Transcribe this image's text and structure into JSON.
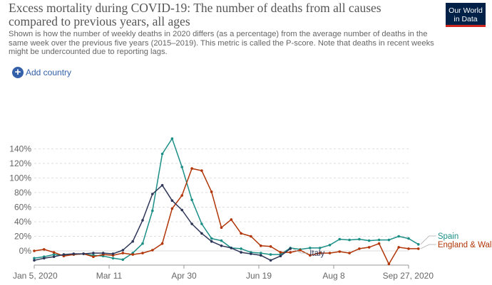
{
  "header": {
    "title": "Excess mortality during COVID-19: The number of deaths from all causes compared to previous years, all ages",
    "subtitle": "Shown is how the number of weekly deaths in 2020 differs (as a percentage) from the average number of deaths in the same week over the previous five years (2015–2019). This metric is called the P-score. Note that deaths in recent weeks might be undercounted due to reporting lags.",
    "logo_line1": "Our World",
    "logo_line2": "in Data"
  },
  "controls": {
    "add_country_label": "Add country",
    "add_icon": "plus-circle-icon"
  },
  "chart_data": {
    "type": "line",
    "title": "Excess mortality during COVID-19: The number of deaths from all causes compared to previous years, all ages",
    "xlabel": "",
    "ylabel": "",
    "x_ticks": [
      "Jan 5, 2020",
      "Mar 11",
      "Apr 30",
      "Jun 19",
      "Aug 8",
      "Sep 27, 2020"
    ],
    "y_ticks": [
      "0%",
      "20%",
      "40%",
      "60%",
      "80%",
      "100%",
      "120%",
      "140%"
    ],
    "ylim": [
      -20,
      150
    ],
    "x_range": [
      "2020-01-05",
      "2020-09-27"
    ],
    "grid": "horizontal dashed",
    "legend": "right (line end labels)",
    "series": [
      {
        "name": "Spain",
        "color": "#1b8f86",
        "points": [
          [
            "2020-01-05",
            -10
          ],
          [
            "2020-01-12",
            -8
          ],
          [
            "2020-01-19",
            -5
          ],
          [
            "2020-01-26",
            -6
          ],
          [
            "2020-02-02",
            -5
          ],
          [
            "2020-02-09",
            -4
          ],
          [
            "2020-02-16",
            -6
          ],
          [
            "2020-02-23",
            -7
          ],
          [
            "2020-03-01",
            -10
          ],
          [
            "2020-03-08",
            -12
          ],
          [
            "2020-03-15",
            -3
          ],
          [
            "2020-03-22",
            10
          ],
          [
            "2020-03-29",
            55
          ],
          [
            "2020-04-05",
            133
          ],
          [
            "2020-04-12",
            154
          ],
          [
            "2020-04-19",
            115
          ],
          [
            "2020-04-26",
            70
          ],
          [
            "2020-05-03",
            37
          ],
          [
            "2020-05-10",
            17
          ],
          [
            "2020-05-17",
            14
          ],
          [
            "2020-05-24",
            4
          ],
          [
            "2020-05-31",
            3
          ],
          [
            "2020-06-07",
            -2
          ],
          [
            "2020-06-14",
            -3
          ],
          [
            "2020-06-21",
            -5
          ],
          [
            "2020-06-28",
            -5
          ],
          [
            "2020-07-05",
            4
          ],
          [
            "2020-07-12",
            2
          ],
          [
            "2020-07-19",
            4
          ],
          [
            "2020-07-26",
            4
          ],
          [
            "2020-08-02",
            8
          ],
          [
            "2020-08-09",
            16
          ],
          [
            "2020-08-16",
            15
          ],
          [
            "2020-08-23",
            16
          ],
          [
            "2020-08-30",
            14
          ],
          [
            "2020-09-06",
            15
          ],
          [
            "2020-09-13",
            15
          ],
          [
            "2020-09-20",
            20
          ],
          [
            "2020-09-27",
            17
          ],
          [
            "2020-10-04",
            9
          ]
        ]
      },
      {
        "name": "England & Wales",
        "color": "#b13507",
        "points": [
          [
            "2020-01-05",
            0
          ],
          [
            "2020-01-12",
            2
          ],
          [
            "2020-01-19",
            -2
          ],
          [
            "2020-01-26",
            -7
          ],
          [
            "2020-02-02",
            -5
          ],
          [
            "2020-02-09",
            -4
          ],
          [
            "2020-02-16",
            -8
          ],
          [
            "2020-02-23",
            -5
          ],
          [
            "2020-03-01",
            -6
          ],
          [
            "2020-03-08",
            -3
          ],
          [
            "2020-03-15",
            -5
          ],
          [
            "2020-03-22",
            -3
          ],
          [
            "2020-03-29",
            1
          ],
          [
            "2020-04-05",
            10
          ],
          [
            "2020-04-12",
            58
          ],
          [
            "2020-04-19",
            76
          ],
          [
            "2020-04-26",
            113
          ],
          [
            "2020-05-03",
            110
          ],
          [
            "2020-05-10",
            81
          ],
          [
            "2020-05-17",
            32
          ],
          [
            "2020-05-24",
            43
          ],
          [
            "2020-05-31",
            24
          ],
          [
            "2020-06-07",
            20
          ],
          [
            "2020-06-14",
            7
          ],
          [
            "2020-06-21",
            6
          ],
          [
            "2020-06-28",
            -2
          ],
          [
            "2020-07-05",
            -2
          ],
          [
            "2020-07-12",
            1
          ],
          [
            "2020-07-19",
            -6
          ],
          [
            "2020-07-26",
            -3
          ],
          [
            "2020-08-02",
            -3
          ],
          [
            "2020-08-09",
            -1
          ],
          [
            "2020-08-16",
            -3
          ],
          [
            "2020-08-23",
            3
          ],
          [
            "2020-08-30",
            5
          ],
          [
            "2020-09-06",
            10
          ],
          [
            "2020-09-13",
            -18
          ],
          [
            "2020-09-20",
            5
          ],
          [
            "2020-09-27",
            3
          ],
          [
            "2020-10-04",
            3
          ]
        ]
      },
      {
        "name": "Italy",
        "color": "#2e3658",
        "points": [
          [
            "2020-01-05",
            -13
          ],
          [
            "2020-01-12",
            -10
          ],
          [
            "2020-01-19",
            -8
          ],
          [
            "2020-01-26",
            -5
          ],
          [
            "2020-02-02",
            -4
          ],
          [
            "2020-02-09",
            -4
          ],
          [
            "2020-02-16",
            -3
          ],
          [
            "2020-02-23",
            -3
          ],
          [
            "2020-03-01",
            -4
          ],
          [
            "2020-03-08",
            1
          ],
          [
            "2020-03-15",
            13
          ],
          [
            "2020-03-22",
            42
          ],
          [
            "2020-03-29",
            78
          ],
          [
            "2020-04-05",
            90
          ],
          [
            "2020-04-12",
            69
          ],
          [
            "2020-04-19",
            56
          ],
          [
            "2020-04-26",
            37
          ],
          [
            "2020-05-03",
            24
          ],
          [
            "2020-05-10",
            13
          ],
          [
            "2020-05-17",
            7
          ],
          [
            "2020-05-24",
            4
          ],
          [
            "2020-05-31",
            -2
          ],
          [
            "2020-06-07",
            -4
          ],
          [
            "2020-06-14",
            -6
          ],
          [
            "2020-06-21",
            -13
          ],
          [
            "2020-06-28",
            -7
          ],
          [
            "2020-07-05",
            3
          ]
        ]
      }
    ]
  }
}
